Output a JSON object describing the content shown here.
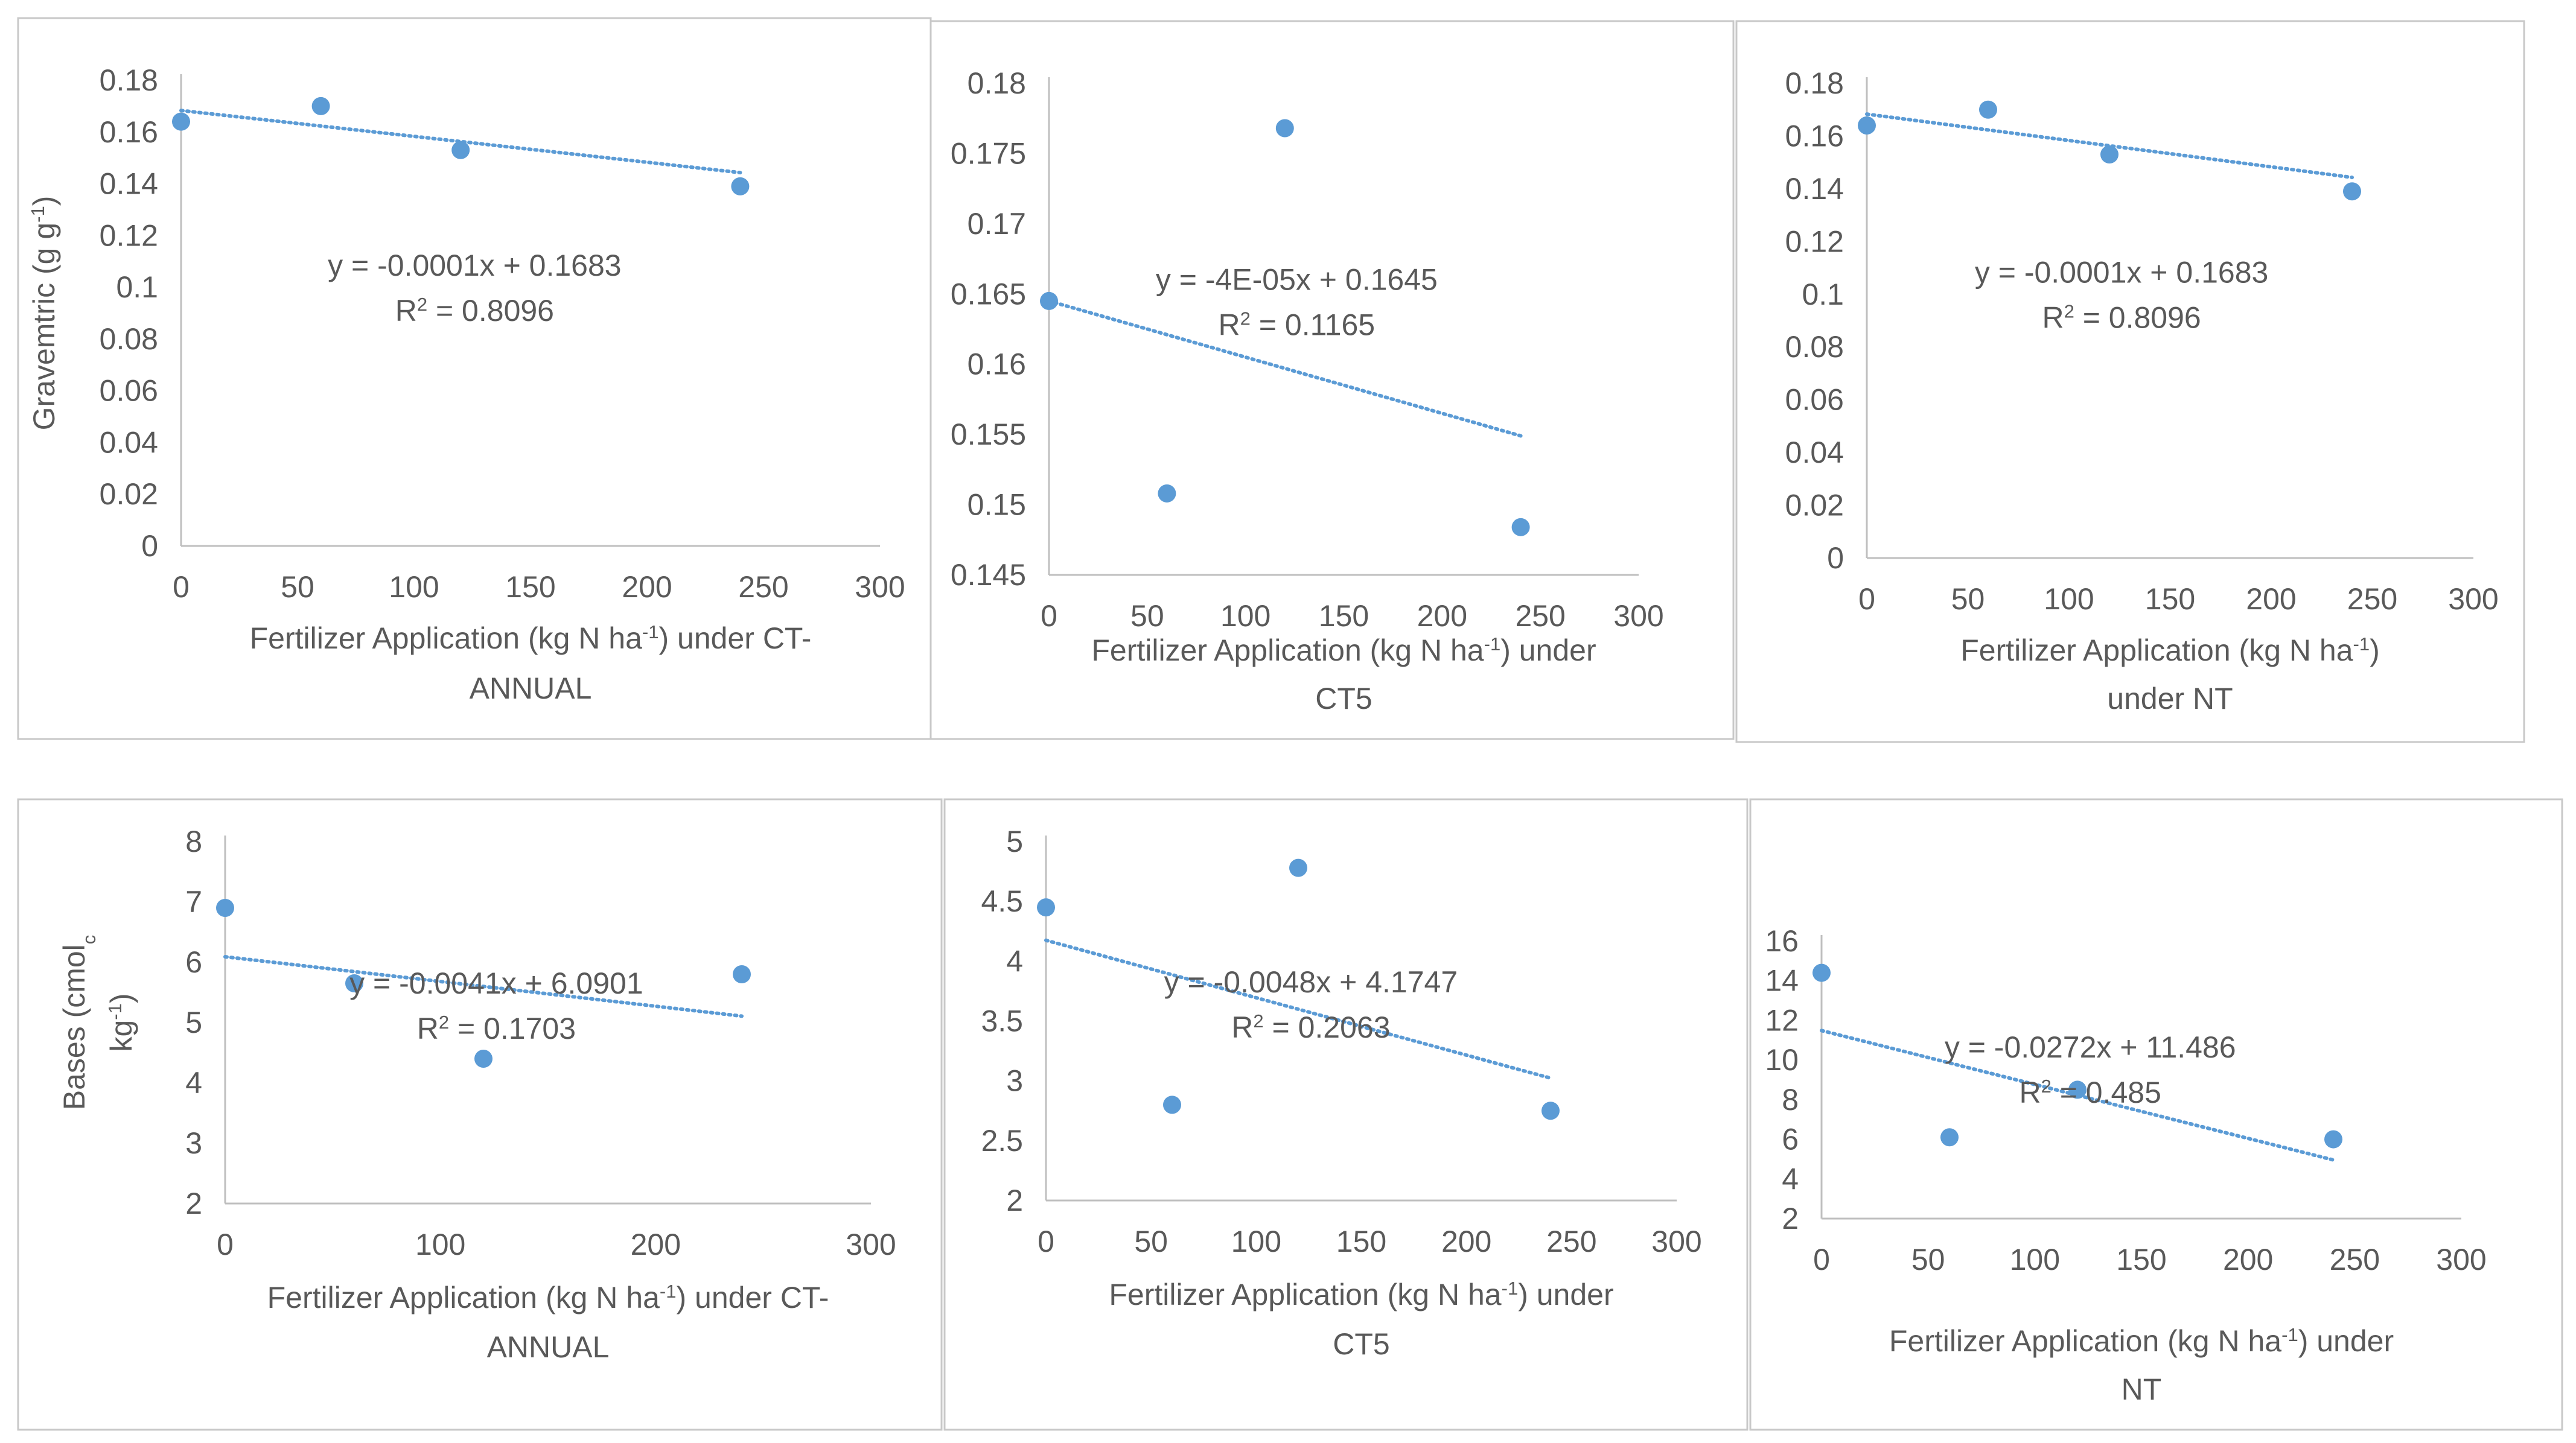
{
  "colors": {
    "marker": "#5b9bd5",
    "trendline": "#5b9bd5",
    "axis": "#bfbfbf",
    "text": "#595959"
  },
  "chart_data": [
    {
      "type": "scatter",
      "panel": "top-left",
      "ylabel_parts": [
        "Gravemtric  (g g",
        "-1",
        ")"
      ],
      "xlabel_lines": [
        [
          "Fertilizer Application (kg N ha",
          "-1",
          ") under CT-"
        ],
        [
          "ANNUAL"
        ]
      ],
      "x_ticks": [
        "0",
        "50",
        "100",
        "150",
        "200",
        "250",
        "300"
      ],
      "y_ticks": [
        "0",
        "0.02",
        "0.04",
        "0.06",
        "0.08",
        "0.1",
        "0.12",
        "0.14",
        "0.16",
        "0.18"
      ],
      "xlim": [
        0,
        300
      ],
      "ylim": [
        0,
        0.18
      ],
      "x": [
        0,
        60,
        120,
        240
      ],
      "y": [
        0.164,
        0.17,
        0.153,
        0.139
      ],
      "trendline": {
        "slope": -0.0001,
        "intercept": 0.1683,
        "x_range": [
          0,
          240
        ]
      },
      "equation": "y = -0.0001x + 0.1683",
      "r2_value": " = 0.8096"
    },
    {
      "type": "scatter",
      "panel": "top-middle",
      "ylabel_parts": [],
      "xlabel_lines": [
        [
          "Fertilizer Application (kg N ha",
          "-1",
          ") under"
        ],
        [
          "CT5"
        ]
      ],
      "x_ticks": [
        "0",
        "50",
        "100",
        "150",
        "200",
        "250",
        "300"
      ],
      "y_ticks": [
        "0.145",
        "0.15",
        "0.155",
        "0.16",
        "0.165",
        "0.17",
        "0.175",
        "0.18"
      ],
      "xlim": [
        0,
        300
      ],
      "ylim": [
        0.145,
        0.18
      ],
      "x": [
        0,
        60,
        120,
        240
      ],
      "y": [
        0.1645,
        0.1508,
        0.1768,
        0.1484
      ],
      "trendline": {
        "slope": -4e-05,
        "intercept": 0.1645,
        "x_range": [
          0,
          240
        ]
      },
      "equation": "y = -4E-05x + 0.1645",
      "r2_value": " = 0.1165"
    },
    {
      "type": "scatter",
      "panel": "top-right",
      "ylabel_parts": [],
      "xlabel_lines": [
        [
          "Fertilizer Application (kg N ha",
          "-1",
          ")"
        ],
        [
          "under NT"
        ]
      ],
      "x_ticks": [
        "0",
        "50",
        "100",
        "150",
        "200",
        "250",
        "300"
      ],
      "y_ticks": [
        "0",
        "0.02",
        "0.04",
        "0.06",
        "0.08",
        "0.1",
        "0.12",
        "0.14",
        "0.16",
        "0.18"
      ],
      "xlim": [
        0,
        300
      ],
      "ylim": [
        0,
        0.18
      ],
      "x": [
        0,
        60,
        120,
        240
      ],
      "y": [
        0.164,
        0.17,
        0.153,
        0.139
      ],
      "trendline": {
        "slope": -0.0001,
        "intercept": 0.1683,
        "x_range": [
          0,
          240
        ]
      },
      "equation": "y = -0.0001x + 0.1683",
      "r2_value": " = 0.8096"
    },
    {
      "type": "scatter",
      "panel": "bottom-left",
      "ylabel_lines": [
        [
          "Bases (cmol",
          "c"
        ],
        [
          "kg",
          "-1",
          ")"
        ]
      ],
      "xlabel_lines": [
        [
          "Fertilizer Application (kg N ha",
          "-1",
          ") under CT-"
        ],
        [
          "ANNUAL"
        ]
      ],
      "x_ticks": [
        "0",
        "100",
        "200",
        "300"
      ],
      "y_ticks": [
        "2",
        "3",
        "4",
        "5",
        "6",
        "7",
        "8"
      ],
      "xlim": [
        0,
        300
      ],
      "ylim": [
        2,
        8
      ],
      "x": [
        0,
        60,
        120,
        240
      ],
      "y": [
        6.9,
        5.65,
        4.4,
        5.8
      ],
      "trendline": {
        "slope": -0.0041,
        "intercept": 6.0901,
        "x_range": [
          0,
          240
        ]
      },
      "equation": "y = -0.0041x + 6.0901",
      "r2_value": " = 0.1703"
    },
    {
      "type": "scatter",
      "panel": "bottom-middle",
      "ylabel_parts": [],
      "xlabel_lines": [
        [
          "Fertilizer Application (kg N ha",
          "-1",
          ") under"
        ],
        [
          "CT5"
        ]
      ],
      "x_ticks": [
        "0",
        "50",
        "100",
        "150",
        "200",
        "250",
        "300"
      ],
      "y_ticks": [
        "2",
        "2.5",
        "3",
        "3.5",
        "4",
        "4.5",
        "5"
      ],
      "xlim": [
        0,
        300
      ],
      "ylim": [
        2,
        5
      ],
      "x": [
        0,
        60,
        120,
        240
      ],
      "y": [
        4.45,
        2.8,
        4.78,
        2.75
      ],
      "trendline": {
        "slope": -0.0048,
        "intercept": 4.1747,
        "x_range": [
          0,
          240
        ]
      },
      "equation": "y = -0.0048x + 4.1747",
      "r2_value": " = 0.2063"
    },
    {
      "type": "scatter",
      "panel": "bottom-right",
      "ylabel_parts": [],
      "xlabel_lines": [
        [
          "Fertilizer Application (kg N ha",
          "-1",
          ") under"
        ],
        [
          "NT"
        ]
      ],
      "x_ticks": [
        "0",
        "50",
        "100",
        "150",
        "200",
        "250",
        "300"
      ],
      "y_ticks": [
        "2",
        "4",
        "6",
        "8",
        "10",
        "12",
        "14",
        "16"
      ],
      "xlim": [
        0,
        300
      ],
      "ylim": [
        2,
        16
      ],
      "x": [
        0,
        60,
        120,
        240
      ],
      "y": [
        14.4,
        6.1,
        8.5,
        6.0
      ],
      "trendline": {
        "slope": -0.0272,
        "intercept": 11.486,
        "x_range": [
          0,
          240
        ]
      },
      "equation": "y = -0.0272x + 11.486",
      "r2_value": " = 0.485"
    }
  ]
}
